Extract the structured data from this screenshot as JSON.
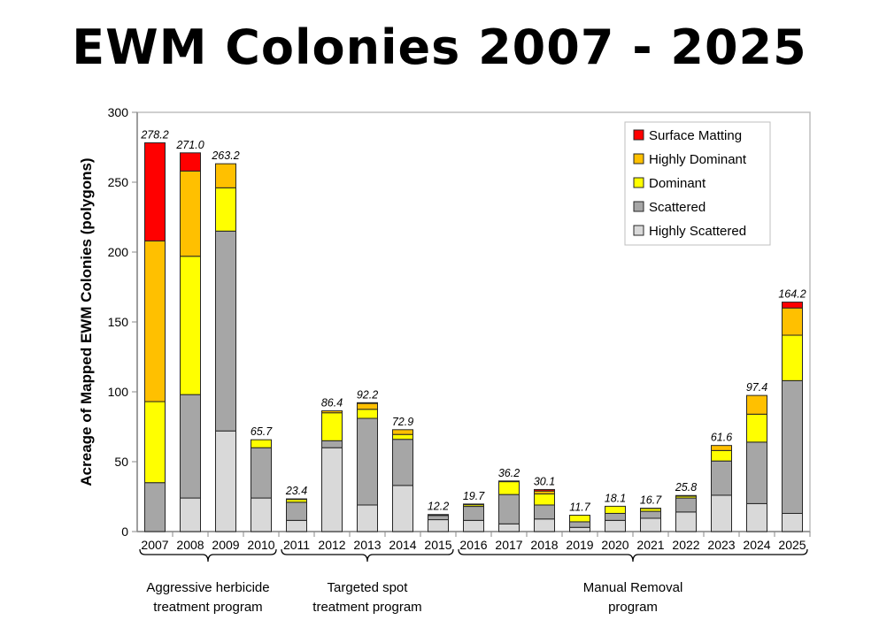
{
  "chart_data": {
    "type": "bar",
    "stacked": true,
    "title": "EWM Colonies 2007 - 2025",
    "xlabel": "",
    "ylabel": "Acreage of Mapped EWM Colonies (polygons)",
    "ylim": [
      0,
      300
    ],
    "yticks": [
      0,
      50,
      100,
      150,
      200,
      250,
      300
    ],
    "legend_position": "top-right",
    "categories": [
      "2007",
      "2008",
      "2009",
      "2010",
      "2011",
      "2012",
      "2013",
      "2014",
      "2015",
      "2016",
      "2017",
      "2018",
      "2019",
      "2020",
      "2021",
      "2022",
      "2023",
      "2024",
      "2025"
    ],
    "totals": [
      "278.2",
      "271.0",
      "263.2",
      "65.7",
      "23.4",
      "86.4",
      "92.2",
      "72.9",
      "12.2",
      "19.7",
      "36.2",
      "30.1",
      "11.7",
      "18.1",
      "16.7",
      "25.8",
      "61.6",
      "97.4",
      "164.2"
    ],
    "series": [
      {
        "name": "Highly Scattered",
        "color": "#d9d9d9",
        "values": [
          0,
          24,
          72,
          24,
          8,
          60,
          19,
          33,
          8.5,
          8,
          5.5,
          9,
          3,
          8,
          9.5,
          14,
          26,
          20,
          13
        ]
      },
      {
        "name": "Scattered",
        "color": "#a6a6a6",
        "values": [
          35,
          74,
          143,
          36,
          13,
          5,
          62,
          33,
          3,
          10,
          21,
          10,
          4,
          5,
          5,
          10,
          24.5,
          44,
          95
        ]
      },
      {
        "name": "Dominant",
        "color": "#ffff00",
        "values": [
          58,
          99,
          31,
          5.7,
          2,
          20,
          6.5,
          3.5,
          0.2,
          1.2,
          9.2,
          8,
          4.7,
          5.1,
          2,
          1.3,
          7.5,
          20,
          32.5
        ]
      },
      {
        "name": "Highly Dominant",
        "color": "#ffc000",
        "values": [
          115,
          61,
          17.2,
          0,
          0.4,
          1.4,
          4.2,
          3.4,
          0.5,
          0.5,
          0.5,
          2,
          0,
          0,
          0.2,
          0.5,
          3.6,
          13.4,
          19.5
        ]
      },
      {
        "name": "Surface Matting",
        "color": "#ff0000",
        "values": [
          70.2,
          13,
          0,
          0,
          0,
          0,
          0.5,
          0,
          0,
          0,
          0,
          1.1,
          0,
          0,
          0,
          0,
          0,
          0,
          4.2
        ]
      }
    ],
    "legend_order": [
      "Surface Matting",
      "Highly Dominant",
      "Dominant",
      "Scattered",
      "Highly Scattered"
    ],
    "groups": [
      {
        "label_lines": [
          "Aggressive herbicide",
          "treatment program"
        ],
        "from": 0,
        "to": 3
      },
      {
        "label_lines": [
          "Targeted spot",
          "treatment program"
        ],
        "from": 4,
        "to": 8
      },
      {
        "label_lines": [
          "Manual Removal",
          "program"
        ],
        "from": 9,
        "to": 18
      }
    ]
  }
}
